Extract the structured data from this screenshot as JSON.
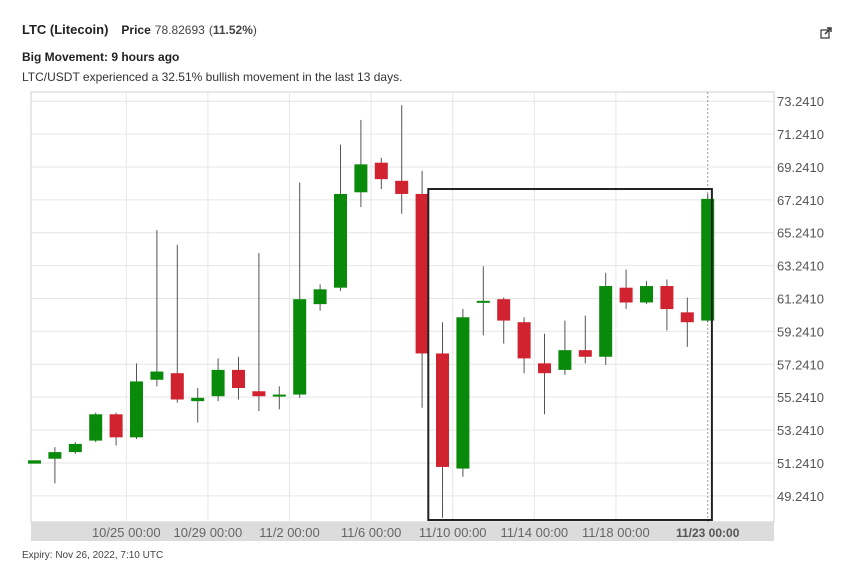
{
  "header": {
    "coin_name": "LTC (Litecoin)",
    "price_label": "Price",
    "price_value": "78.82693",
    "price_change_open": "(",
    "price_change_pct": "11.52%",
    "price_change_close": ")"
  },
  "alert": {
    "title": "Big Movement: 9 hours ago",
    "description": "LTC/USDT experienced a 32.51% bullish movement in the last 13 days."
  },
  "footer": {
    "expiry": "Expiry: Nov 26, 2022, 7:10 UTC"
  },
  "icons": {
    "expand": "external-link-icon"
  },
  "colors": {
    "up": "#0a8a0a",
    "down": "#d0222f",
    "wick": "#555555",
    "grid": "#e6e6e6",
    "highlight_box": "#222222",
    "axis_band": "#dcdcdc"
  },
  "chart_data": {
    "type": "candlestick",
    "pair": "LTC/USDT",
    "y_tick_labels": [
      "49.2410",
      "51.2410",
      "53.2410",
      "55.2410",
      "57.2410",
      "59.2410",
      "61.2410",
      "63.2410",
      "65.2410",
      "67.2410",
      "69.2410",
      "71.2410",
      "73.2410"
    ],
    "x_tick_labels": [
      "10/25 00:00",
      "10/29 00:00",
      "11/2 00:00",
      "11/6 00:00",
      "11/10 00:00",
      "11/14 00:00",
      "11/18 00:00"
    ],
    "x_current_label": "11/23 00:00",
    "ylim": [
      47.65,
      73.8
    ],
    "grid": true,
    "candles": [
      {
        "t": 0.0,
        "o": 51.2,
        "c": 51.4,
        "h": 51.4,
        "l": 51.2
      },
      {
        "t": 1.0,
        "o": 51.5,
        "c": 51.9,
        "h": 52.2,
        "l": 50.0
      },
      {
        "t": 2.0,
        "o": 51.9,
        "c": 52.4,
        "h": 52.5,
        "l": 51.8
      },
      {
        "t": 3.0,
        "o": 52.6,
        "c": 54.2,
        "h": 54.3,
        "l": 52.5
      },
      {
        "t": 4.0,
        "o": 54.2,
        "c": 52.8,
        "h": 54.3,
        "l": 52.3
      },
      {
        "t": 5.0,
        "o": 52.8,
        "c": 56.2,
        "h": 57.3,
        "l": 52.7
      },
      {
        "t": 6.0,
        "o": 56.3,
        "c": 56.8,
        "h": 65.4,
        "l": 55.9
      },
      {
        "t": 7.0,
        "o": 56.7,
        "c": 55.1,
        "h": 64.5,
        "l": 54.9
      },
      {
        "t": 8.0,
        "o": 55.0,
        "c": 55.2,
        "h": 55.8,
        "l": 53.7
      },
      {
        "t": 9.0,
        "o": 55.3,
        "c": 56.9,
        "h": 57.6,
        "l": 55.0
      },
      {
        "t": 10.0,
        "o": 56.9,
        "c": 55.8,
        "h": 57.7,
        "l": 55.1
      },
      {
        "t": 11.0,
        "o": 55.6,
        "c": 55.3,
        "h": 64.0,
        "l": 54.4
      },
      {
        "t": 12.0,
        "o": 55.3,
        "c": 55.4,
        "h": 55.9,
        "l": 54.5
      },
      {
        "t": 13.0,
        "o": 55.4,
        "c": 61.2,
        "h": 68.3,
        "l": 55.2
      },
      {
        "t": 14.0,
        "o": 60.9,
        "c": 61.8,
        "h": 62.1,
        "l": 60.5
      },
      {
        "t": 15.0,
        "o": 61.9,
        "c": 67.6,
        "h": 70.6,
        "l": 61.7
      },
      {
        "t": 16.0,
        "o": 67.7,
        "c": 69.4,
        "h": 72.1,
        "l": 66.8
      },
      {
        "t": 17.0,
        "o": 69.5,
        "c": 68.5,
        "h": 69.8,
        "l": 67.9
      },
      {
        "t": 18.0,
        "o": 68.4,
        "c": 67.6,
        "h": 73.0,
        "l": 66.4
      },
      {
        "t": 19.0,
        "o": 67.6,
        "c": 57.9,
        "h": 69.0,
        "l": 54.6
      },
      {
        "t": 20.0,
        "o": 57.9,
        "c": 51.0,
        "h": 59.8,
        "l": 47.9
      },
      {
        "t": 21.0,
        "o": 50.9,
        "c": 60.1,
        "h": 60.6,
        "l": 50.4
      },
      {
        "t": 22.0,
        "o": 61.0,
        "c": 61.1,
        "h": 63.2,
        "l": 59.0
      },
      {
        "t": 23.0,
        "o": 61.2,
        "c": 59.9,
        "h": 61.3,
        "l": 58.5
      },
      {
        "t": 24.0,
        "o": 59.8,
        "c": 57.6,
        "h": 60.1,
        "l": 56.7
      },
      {
        "t": 25.0,
        "o": 57.3,
        "c": 56.7,
        "h": 59.1,
        "l": 54.2
      },
      {
        "t": 26.0,
        "o": 56.9,
        "c": 58.1,
        "h": 59.9,
        "l": 56.6
      },
      {
        "t": 27.0,
        "o": 58.1,
        "c": 57.7,
        "h": 60.2,
        "l": 57.3
      },
      {
        "t": 28.0,
        "o": 57.7,
        "c": 62.0,
        "h": 62.8,
        "l": 57.2
      },
      {
        "t": 29.0,
        "o": 61.9,
        "c": 61.0,
        "h": 63.0,
        "l": 60.6
      },
      {
        "t": 30.0,
        "o": 61.0,
        "c": 62.0,
        "h": 62.3,
        "l": 60.9
      },
      {
        "t": 31.0,
        "o": 62.0,
        "c": 60.6,
        "h": 62.4,
        "l": 59.3
      },
      {
        "t": 32.0,
        "o": 60.4,
        "c": 59.8,
        "h": 61.3,
        "l": 58.3
      },
      {
        "t": 33.0,
        "o": 59.9,
        "c": 67.3,
        "h": 67.6,
        "l": 59.8
      }
    ],
    "highlight_range": {
      "t_start": 19.5,
      "t_end": 33.5,
      "y_low": 47.65,
      "y_high": 67.9
    },
    "x_tick_positions": [
      4.5,
      8.5,
      12.5,
      16.5,
      20.5,
      24.5,
      28.5
    ],
    "x_current_position": 33.0
  }
}
